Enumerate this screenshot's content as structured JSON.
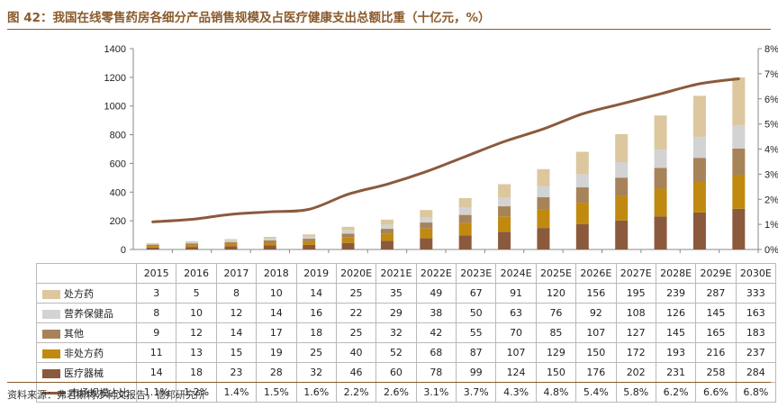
{
  "title": "图 42：我国在线零售药房各细分产品销售规模及占医疗健康支出总额比重（十亿元，%）",
  "source": "资料来源：弗若斯特沙利文报告，德邦研究所",
  "chart_data": {
    "type": "bar",
    "stacked": true,
    "categories": [
      "2015",
      "2016",
      "2017",
      "2018",
      "2019",
      "2020E",
      "2021E",
      "2022E",
      "2023E",
      "2024E",
      "2025E",
      "2026E",
      "2027E",
      "2028E",
      "2029E",
      "2030E"
    ],
    "ylim": [
      0,
      1400
    ],
    "yticks": [
      "0",
      "200",
      "400",
      "600",
      "800",
      "1000",
      "1200",
      "1400"
    ],
    "y2lim": [
      0,
      8
    ],
    "y2ticks": [
      "0%",
      "1%",
      "2%",
      "3%",
      "4%",
      "5%",
      "6%",
      "7%",
      "8%"
    ],
    "series": [
      {
        "name": "医疗器械",
        "color": "#8b5a3c",
        "values": [
          14,
          18,
          23,
          28,
          32,
          46,
          60,
          78,
          99,
          124,
          150,
          176,
          202,
          231,
          258,
          284
        ]
      },
      {
        "name": "非处方药",
        "color": "#c08a10",
        "values": [
          11,
          13,
          15,
          19,
          25,
          40,
          52,
          68,
          87,
          107,
          129,
          150,
          172,
          193,
          216,
          237
        ]
      },
      {
        "name": "其他",
        "color": "#a7835a",
        "values": [
          9,
          12,
          14,
          17,
          18,
          25,
          32,
          42,
          55,
          70,
          85,
          107,
          127,
          145,
          165,
          183
        ]
      },
      {
        "name": "营养保健品",
        "color": "#d3d3d3",
        "values": [
          8,
          10,
          12,
          14,
          16,
          22,
          29,
          38,
          50,
          63,
          76,
          92,
          108,
          126,
          145,
          163
        ]
      },
      {
        "name": "处方药",
        "color": "#dcc79e",
        "values": [
          3,
          5,
          8,
          10,
          14,
          25,
          35,
          49,
          67,
          91,
          120,
          156,
          195,
          239,
          287,
          333
        ]
      }
    ],
    "line": {
      "name": "市场规模占比",
      "color": "#8b5a3c",
      "values": [
        1.1,
        1.2,
        1.4,
        1.5,
        1.6,
        2.2,
        2.6,
        3.1,
        3.7,
        4.3,
        4.8,
        5.4,
        5.8,
        6.2,
        6.6,
        6.8
      ],
      "labels": [
        "1.1%",
        "1.2%",
        "1.4%",
        "1.5%",
        "1.6%",
        "2.2%",
        "2.6%",
        "3.1%",
        "3.7%",
        "4.3%",
        "4.8%",
        "5.4%",
        "5.8%",
        "6.2%",
        "6.6%",
        "6.8%"
      ]
    },
    "table_order": [
      "处方药",
      "营养保健品",
      "其他",
      "非处方药",
      "医疗器械",
      "市场规模占比"
    ]
  }
}
